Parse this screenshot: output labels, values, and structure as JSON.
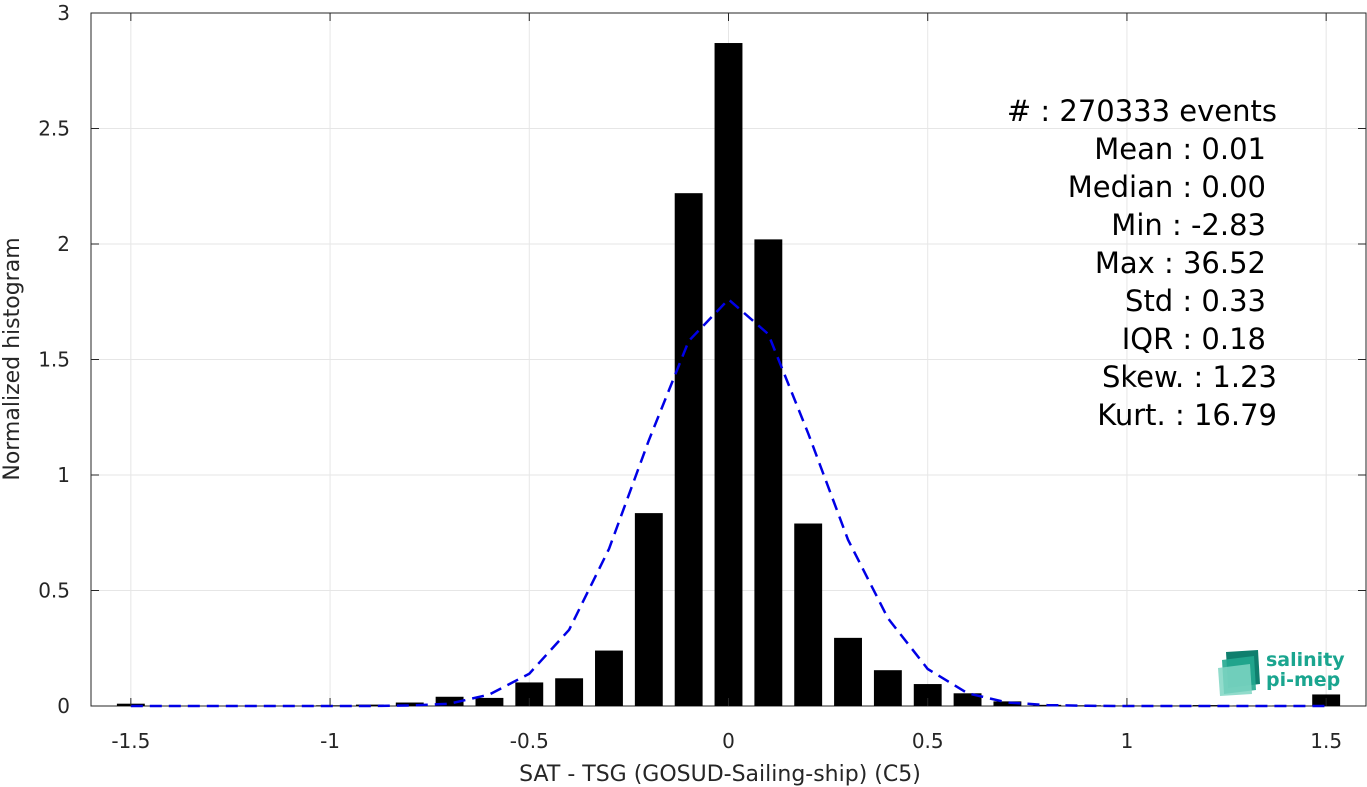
{
  "chart_data": {
    "type": "bar",
    "xlabel": "SAT - TSG (GOSUD-Sailing-ship) (C5)",
    "ylabel": "Normalized histogram",
    "xlim": [
      -1.6,
      1.6
    ],
    "ylim": [
      0,
      3
    ],
    "xticks": [
      -1.5,
      -1,
      -0.5,
      0,
      0.5,
      1,
      1.5
    ],
    "xtick_labels": [
      "-1.5",
      "-1",
      "-0.5",
      "0",
      "0.5",
      "1",
      "1.5"
    ],
    "yticks": [
      0,
      0.5,
      1,
      1.5,
      2,
      2.5,
      3
    ],
    "ytick_labels": [
      "0",
      "0.5",
      "1",
      "1.5",
      "2",
      "2.5",
      "3"
    ],
    "grid": true,
    "bar_width": 0.07,
    "bar_color": "#000000",
    "fit_color": "#0000e6",
    "bars": {
      "x": [
        -1.5,
        -1.4,
        -1.3,
        -1.2,
        -1.1,
        -1.0,
        -0.9,
        -0.8,
        -0.7,
        -0.6,
        -0.5,
        -0.4,
        -0.3,
        -0.2,
        -0.1,
        0.0,
        0.1,
        0.2,
        0.3,
        0.4,
        0.5,
        0.6,
        0.7,
        0.8,
        0.9,
        1.0,
        1.1,
        1.2,
        1.3,
        1.4,
        1.5
      ],
      "y": [
        0.01,
        0.0,
        0.0,
        0.0,
        0.0,
        0.003,
        0.006,
        0.015,
        0.04,
        0.035,
        0.102,
        0.12,
        0.24,
        0.835,
        2.22,
        2.87,
        2.02,
        0.79,
        0.295,
        0.155,
        0.095,
        0.055,
        0.02,
        0.005,
        0.003,
        0.002,
        0.002,
        0.004,
        0.002,
        0.002,
        0.05
      ]
    },
    "fit_curve": {
      "name": "",
      "x": [
        -1.5,
        -1.4,
        -1.3,
        -1.2,
        -1.1,
        -1.0,
        -0.9,
        -0.8,
        -0.7,
        -0.6,
        -0.5,
        -0.4,
        -0.3,
        -0.2,
        -0.1,
        0.0,
        0.1,
        0.2,
        0.3,
        0.4,
        0.5,
        0.6,
        0.7,
        0.8,
        0.9,
        1.0,
        1.1,
        1.2,
        1.3,
        1.4,
        1.5
      ],
      "y": [
        0.0,
        0.0,
        0.0,
        0.0,
        0.0,
        0.0,
        0.0,
        0.002,
        0.01,
        0.05,
        0.14,
        0.33,
        0.68,
        1.15,
        1.58,
        1.76,
        1.61,
        1.18,
        0.72,
        0.38,
        0.16,
        0.055,
        0.015,
        0.004,
        0.001,
        0.0,
        0.0,
        0.0,
        0.0,
        0.0,
        0.0
      ]
    },
    "stats_lines": [
      "#  : 270333 events",
      "Mean : 0.01",
      "Median : 0.00",
      "Min : -2.83",
      "Max : 36.52",
      "Std : 0.33",
      "IQR : 0.18",
      "Skew. : 1.23",
      "Kurt. : 16.79"
    ]
  },
  "logo": {
    "line1": "salinity",
    "line2": "pi-mep"
  }
}
